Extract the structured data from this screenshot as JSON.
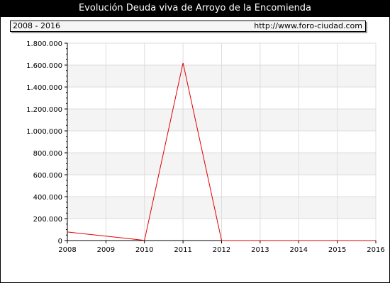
{
  "title": "Evolución Deuda viva de Arroyo de la Encomienda",
  "period_label": "2008 - 2016",
  "source_url": "http://www.foro-ciudad.com",
  "chart_data": {
    "type": "line",
    "x": [
      2008,
      2009,
      2010,
      2011,
      2012,
      2013,
      2014,
      2015,
      2016
    ],
    "x_tick_labels": [
      "2008",
      "2009",
      "2010",
      "2011",
      "2012",
      "2013",
      "2014",
      "2015",
      "2016"
    ],
    "series": [
      {
        "values": [
          78000,
          40000,
          2000,
          1620000,
          0,
          0,
          0,
          0,
          0
        ],
        "color": "#e00000"
      }
    ],
    "y_tick_values": [
      0,
      200000,
      400000,
      600000,
      800000,
      1000000,
      1200000,
      1400000,
      1600000,
      1800000
    ],
    "y_tick_labels": [
      "0",
      "200.000",
      "400.000",
      "600.000",
      "800.000",
      "1.000.000",
      "1.200.000",
      "1.400.000",
      "1.600.000",
      "1.800.000"
    ],
    "ylim": [
      0,
      1800000
    ],
    "xlim": [
      2008,
      2016
    ],
    "grid": true
  }
}
